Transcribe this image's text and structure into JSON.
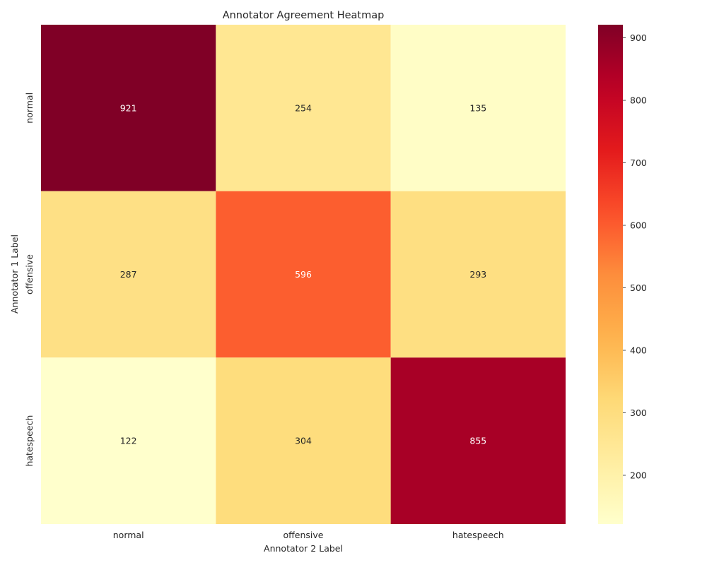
{
  "chart_data": {
    "type": "heatmap",
    "title": "Annotator Agreement Heatmap",
    "xlabel": "Annotator 2 Label",
    "ylabel": "Annotator 1 Label",
    "x_categories": [
      "normal",
      "offensive",
      "hatespeech"
    ],
    "y_categories": [
      "normal",
      "offensive",
      "hatespeech"
    ],
    "values": [
      [
        921,
        254,
        135
      ],
      [
        287,
        596,
        293
      ],
      [
        122,
        304,
        855
      ]
    ],
    "colormap": "YlOrRd",
    "colorbar": {
      "min": 122,
      "max": 921,
      "ticks": [
        200,
        300,
        400,
        500,
        600,
        700,
        800,
        900
      ]
    },
    "grid": false,
    "annotations": true
  }
}
